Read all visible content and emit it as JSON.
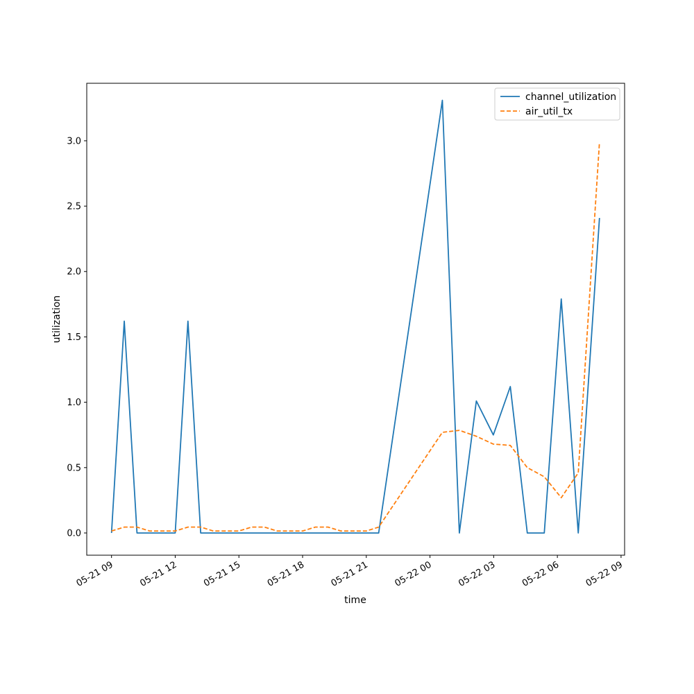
{
  "chart_data": {
    "type": "line",
    "title": "",
    "xlabel": "time",
    "ylabel": "utilization",
    "x_ticks": [
      "05-21 09",
      "05-21 12",
      "05-21 15",
      "05-21 18",
      "05-21 21",
      "05-22 00",
      "05-22 03",
      "05-22 06",
      "05-22 09"
    ],
    "x_tick_times": [
      "2024-05-21 09:00",
      "2024-05-21 12:00",
      "2024-05-21 15:00",
      "2024-05-21 18:00",
      "2024-05-21 21:00",
      "2024-05-22 00:00",
      "2024-05-22 03:00",
      "2024-05-22 06:00",
      "2024-05-22 09:00"
    ],
    "y_ticks": [
      "0.0",
      "0.5",
      "1.0",
      "1.5",
      "2.0",
      "2.5",
      "3.0"
    ],
    "xlim": [
      "2024-05-21 07:50",
      "2024-05-22 09:10"
    ],
    "ylim": [
      -0.17,
      3.44
    ],
    "grid": false,
    "legend_position": "upper right",
    "series": [
      {
        "name": "channel_utilization",
        "style": "solid",
        "color": "#1f77b4",
        "points": [
          [
            "2024-05-21 09:00",
            0.0
          ],
          [
            "2024-05-21 09:36",
            1.62
          ],
          [
            "2024-05-21 10:12",
            0.0
          ],
          [
            "2024-05-21 12:00",
            0.0
          ],
          [
            "2024-05-21 12:36",
            1.62
          ],
          [
            "2024-05-21 13:12",
            0.0
          ],
          [
            "2024-05-21 21:35",
            0.0
          ],
          [
            "2024-05-22 00:35",
            3.31
          ],
          [
            "2024-05-22 01:23",
            0.0
          ],
          [
            "2024-05-22 02:11",
            1.01
          ],
          [
            "2024-05-22 02:59",
            0.75
          ],
          [
            "2024-05-22 03:47",
            1.12
          ],
          [
            "2024-05-22 04:35",
            0.0
          ],
          [
            "2024-05-22 05:23",
            0.0
          ],
          [
            "2024-05-22 06:11",
            1.79
          ],
          [
            "2024-05-22 06:59",
            0.0
          ],
          [
            "2024-05-22 07:59",
            2.41
          ]
        ]
      },
      {
        "name": "air_util_tx",
        "style": "dashed",
        "color": "#ff7f0e",
        "points": [
          [
            "2024-05-21 09:00",
            0.015
          ],
          [
            "2024-05-21 09:36",
            0.045
          ],
          [
            "2024-05-21 10:12",
            0.045
          ],
          [
            "2024-05-21 10:48",
            0.015
          ],
          [
            "2024-05-21 12:00",
            0.015
          ],
          [
            "2024-05-21 12:36",
            0.045
          ],
          [
            "2024-05-21 13:12",
            0.045
          ],
          [
            "2024-05-21 13:48",
            0.015
          ],
          [
            "2024-05-21 15:00",
            0.015
          ],
          [
            "2024-05-21 15:36",
            0.045
          ],
          [
            "2024-05-21 16:12",
            0.045
          ],
          [
            "2024-05-21 16:48",
            0.015
          ],
          [
            "2024-05-21 18:00",
            0.015
          ],
          [
            "2024-05-21 18:36",
            0.045
          ],
          [
            "2024-05-21 19:12",
            0.045
          ],
          [
            "2024-05-21 19:48",
            0.015
          ],
          [
            "2024-05-21 21:00",
            0.015
          ],
          [
            "2024-05-21 21:35",
            0.045
          ],
          [
            "2024-05-22 00:35",
            0.77
          ],
          [
            "2024-05-22 01:23",
            0.785
          ],
          [
            "2024-05-22 02:11",
            0.74
          ],
          [
            "2024-05-22 02:59",
            0.68
          ],
          [
            "2024-05-22 03:47",
            0.67
          ],
          [
            "2024-05-22 04:35",
            0.5
          ],
          [
            "2024-05-22 05:23",
            0.43
          ],
          [
            "2024-05-22 06:11",
            0.27
          ],
          [
            "2024-05-22 06:59",
            0.46
          ],
          [
            "2024-05-22 07:59",
            2.99
          ]
        ]
      }
    ]
  }
}
